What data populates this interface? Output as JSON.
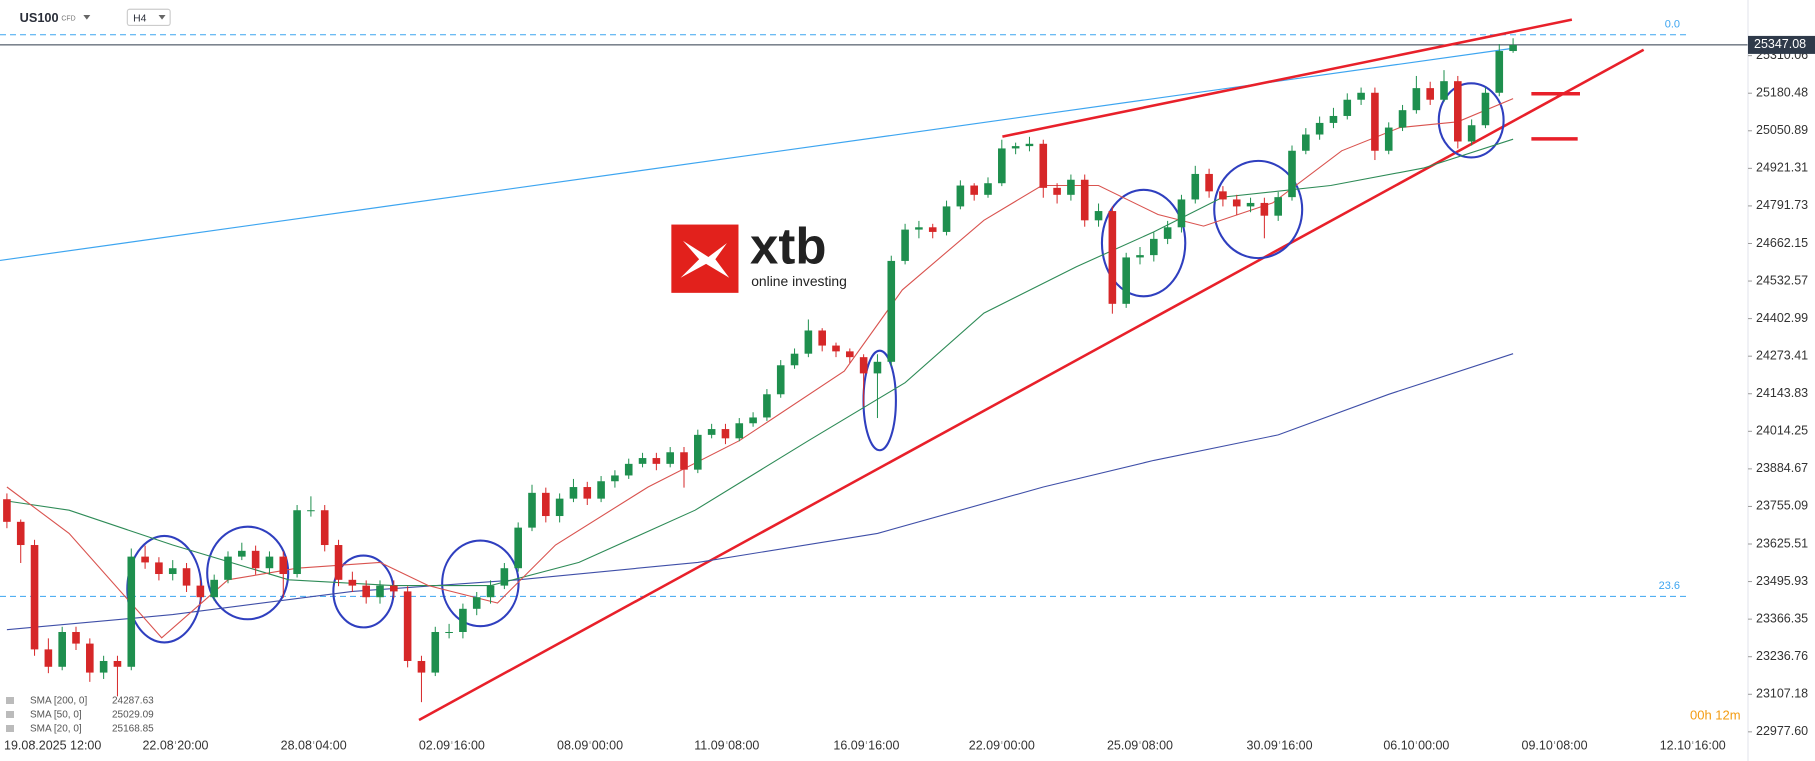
{
  "chart_data": {
    "type": "candlestick",
    "symbol": "US100",
    "instrument_type": "CFD",
    "interval": "H4",
    "up_color": "#1e8f4e",
    "down_color": "#d62728",
    "candles": [
      [
        23780,
        23800,
        23680,
        23702
      ],
      [
        23702,
        23710,
        23560,
        23622
      ],
      [
        23622,
        23640,
        23240,
        23262
      ],
      [
        23262,
        23300,
        23180,
        23202
      ],
      [
        23202,
        23340,
        23190,
        23322
      ],
      [
        23322,
        23340,
        23260,
        23282
      ],
      [
        23282,
        23300,
        23150,
        23182
      ],
      [
        23182,
        23240,
        23160,
        23222
      ],
      [
        23222,
        23240,
        23100,
        23202
      ],
      [
        23202,
        23610,
        23190,
        23582
      ],
      [
        23582,
        23620,
        23540,
        23562
      ],
      [
        23562,
        23580,
        23500,
        23522
      ],
      [
        23522,
        23570,
        23500,
        23542
      ],
      [
        23542,
        23560,
        23460,
        23482
      ],
      [
        23482,
        23500,
        23420,
        23442
      ],
      [
        23442,
        23520,
        23430,
        23502
      ],
      [
        23502,
        23600,
        23490,
        23582
      ],
      [
        23582,
        23630,
        23570,
        23602
      ],
      [
        23602,
        23620,
        23520,
        23542
      ],
      [
        23542,
        23600,
        23520,
        23582
      ],
      [
        23582,
        23600,
        23440,
        23522
      ],
      [
        23522,
        23760,
        23510,
        23742
      ],
      [
        23742,
        23790,
        23720,
        23742
      ],
      [
        23742,
        23760,
        23600,
        23622
      ],
      [
        23622,
        23640,
        23480,
        23502
      ],
      [
        23502,
        23530,
        23460,
        23482
      ],
      [
        23482,
        23500,
        23420,
        23442
      ],
      [
        23442,
        23500,
        23420,
        23482
      ],
      [
        23482,
        23500,
        23440,
        23462
      ],
      [
        23462,
        23480,
        23200,
        23222
      ],
      [
        23222,
        23240,
        23080,
        23182
      ],
      [
        23182,
        23340,
        23170,
        23322
      ],
      [
        23322,
        23350,
        23300,
        23322
      ],
      [
        23322,
        23420,
        23300,
        23402
      ],
      [
        23402,
        23460,
        23380,
        23442
      ],
      [
        23442,
        23500,
        23420,
        23482
      ],
      [
        23482,
        23560,
        23470,
        23542
      ],
      [
        23542,
        23700,
        23530,
        23682
      ],
      [
        23682,
        23830,
        23670,
        23802
      ],
      [
        23802,
        23820,
        23700,
        23722
      ],
      [
        23722,
        23800,
        23700,
        23782
      ],
      [
        23782,
        23850,
        23770,
        23822
      ],
      [
        23822,
        23840,
        23760,
        23782
      ],
      [
        23782,
        23860,
        23770,
        23842
      ],
      [
        23842,
        23880,
        23820,
        23862
      ],
      [
        23862,
        23920,
        23850,
        23902
      ],
      [
        23902,
        23940,
        23890,
        23922
      ],
      [
        23922,
        23940,
        23880,
        23902
      ],
      [
        23902,
        23960,
        23890,
        23942
      ],
      [
        23942,
        23960,
        23820,
        23882
      ],
      [
        23882,
        24020,
        23870,
        24002
      ],
      [
        24002,
        24040,
        23990,
        24022
      ],
      [
        24022,
        24040,
        23970,
        23990
      ],
      [
        23990,
        24060,
        23980,
        24042
      ],
      [
        24042,
        24080,
        24030,
        24062
      ],
      [
        24062,
        24160,
        24050,
        24142
      ],
      [
        24142,
        24260,
        24130,
        24242
      ],
      [
        24242,
        24300,
        24230,
        24282
      ],
      [
        24282,
        24400,
        24270,
        24362
      ],
      [
        24362,
        24370,
        24290,
        24310
      ],
      [
        24310,
        24320,
        24270,
        24290
      ],
      [
        24290,
        24300,
        24250,
        24270
      ],
      [
        24270,
        24280,
        24100,
        24214
      ],
      [
        24214,
        24280,
        24060,
        24254
      ],
      [
        24254,
        24620,
        24240,
        24602
      ],
      [
        24602,
        24730,
        24590,
        24710
      ],
      [
        24710,
        24740,
        24680,
        24718
      ],
      [
        24718,
        24730,
        24680,
        24702
      ],
      [
        24702,
        24810,
        24690,
        24790
      ],
      [
        24790,
        24880,
        24780,
        24862
      ],
      [
        24862,
        24870,
        24810,
        24830
      ],
      [
        24830,
        24890,
        24820,
        24870
      ],
      [
        24870,
        25020,
        24860,
        24990
      ],
      [
        24990,
        25010,
        24970,
        24998
      ],
      [
        24998,
        25030,
        24980,
        25006
      ],
      [
        25006,
        25020,
        24820,
        24854
      ],
      [
        24854,
        24870,
        24800,
        24830
      ],
      [
        24830,
        24900,
        24810,
        24882
      ],
      [
        24882,
        24900,
        24720,
        24742
      ],
      [
        24742,
        24800,
        24720,
        24774
      ],
      [
        24774,
        24790,
        24420,
        24454
      ],
      [
        24454,
        24630,
        24440,
        24614
      ],
      [
        24614,
        24650,
        24590,
        24622
      ],
      [
        24622,
        24700,
        24600,
        24678
      ],
      [
        24678,
        24740,
        24660,
        24718
      ],
      [
        24718,
        24830,
        24700,
        24814
      ],
      [
        24814,
        24930,
        24800,
        24902
      ],
      [
        24902,
        24920,
        24820,
        24842
      ],
      [
        24842,
        24860,
        24790,
        24814
      ],
      [
        24814,
        24830,
        24760,
        24790
      ],
      [
        24790,
        24820,
        24770,
        24802
      ],
      [
        24802,
        24820,
        24680,
        24758
      ],
      [
        24758,
        24840,
        24740,
        24822
      ],
      [
        24822,
        25000,
        24810,
        24982
      ],
      [
        24982,
        25060,
        24970,
        25038
      ],
      [
        25038,
        25100,
        25020,
        25078
      ],
      [
        25078,
        25130,
        25060,
        25102
      ],
      [
        25102,
        25180,
        25090,
        25158
      ],
      [
        25158,
        25200,
        25140,
        25182
      ],
      [
        25182,
        25200,
        24950,
        24982
      ],
      [
        24982,
        25080,
        24970,
        25062
      ],
      [
        25062,
        25140,
        25050,
        25122
      ],
      [
        25122,
        25240,
        25110,
        25198
      ],
      [
        25198,
        25220,
        25140,
        25158
      ],
      [
        25158,
        25260,
        25150,
        25222
      ],
      [
        25222,
        25240,
        24990,
        25014
      ],
      [
        25014,
        25090,
        25000,
        25070
      ],
      [
        25070,
        25200,
        25060,
        25182
      ],
      [
        25182,
        25350,
        25170,
        25326
      ],
      [
        25326,
        25370,
        25320,
        25347.08
      ]
    ],
    "smas": [
      {
        "name": "SMA [200, 0]",
        "last": 24287.63,
        "color": "#3f4fa8",
        "x": [
          0,
          12,
          25,
          37,
          50,
          63,
          75,
          83,
          92,
          100,
          109
        ],
        "values": [
          23330,
          23382,
          23462,
          23502,
          23562,
          23662,
          23822,
          23914,
          24002,
          24142,
          24282
        ]
      },
      {
        "name": "SMA [50, 0]",
        "last": 25029.09,
        "color": "#2e8b57",
        "x": [
          0,
          4.5,
          12,
          20.4,
          28,
          35,
          41.4,
          49.8,
          58,
          65,
          70.7,
          77.4,
          83,
          88,
          95.8,
          102.5,
          109
        ],
        "values": [
          23774,
          23742,
          23622,
          23502,
          23482,
          23482,
          23562,
          23742,
          23982,
          24182,
          24422,
          24582,
          24702,
          24822,
          24862,
          24922,
          25022
        ]
      },
      {
        "name": "SMA [20, 0]",
        "last": 25168.85,
        "color": "#d9534f",
        "x": [
          0,
          4.5,
          11.2,
          16,
          21,
          27,
          30.5,
          35.5,
          39.7,
          46.4,
          53,
          60.6,
          64.8,
          70.7,
          74.9,
          79,
          83.3,
          86.6,
          91.6,
          96.6,
          100.8,
          105,
          109
        ],
        "values": [
          23822,
          23662,
          23302,
          23502,
          23542,
          23562,
          23482,
          23422,
          23622,
          23822,
          23982,
          24222,
          24502,
          24742,
          24862,
          24862,
          24762,
          24722,
          24802,
          24982,
          25062,
          25082,
          25162
        ]
      }
    ],
    "last_price": 25347.08,
    "fib_levels": [
      {
        "label": "0.0",
        "price": 25382
      },
      {
        "label": "23.6",
        "price": 23445
      }
    ],
    "ylim": [
      22946,
      25502
    ],
    "yticks": [
      25310.06,
      25180.48,
      25050.89,
      24921.31,
      24791.73,
      24662.15,
      24532.57,
      24402.99,
      24273.41,
      24143.83,
      24014.25,
      23884.67,
      23755.09,
      23625.51,
      23495.93,
      23366.35,
      23236.76,
      23107.18,
      {
        "value": 22977.6,
        "label": "22977.60"
      }
    ],
    "xlim": [
      -0.5,
      126
    ],
    "xticks": [
      {
        "value": 2,
        "label": "19.08.2025 12:00"
      },
      {
        "value": 12.2,
        "label": "22.08 20:00"
      },
      {
        "value": 22.2,
        "label": "28.08 04:00"
      },
      {
        "value": 32.2,
        "label": "02.09 16:00"
      },
      {
        "value": 42.2,
        "label": "08.09 00:00"
      },
      {
        "value": 52.1,
        "label": "11.09 08:00"
      },
      {
        "value": 62.2,
        "label": "16.09 16:00"
      },
      {
        "value": 72,
        "label": "22.09 00:00"
      },
      {
        "value": 82,
        "label": "25.09 08:00"
      },
      {
        "value": 92.1,
        "label": "30.09 16:00"
      },
      {
        "value": 102,
        "label": "06.10 00:00"
      },
      {
        "value": 112,
        "label": "09.10 08:00"
      },
      {
        "value": 122,
        "label": "12.10 16:00"
      }
    ],
    "grid": false,
    "countdown": "00h 12m",
    "watermark": {
      "brand": "xtb",
      "tagline": "online investing"
    }
  }
}
